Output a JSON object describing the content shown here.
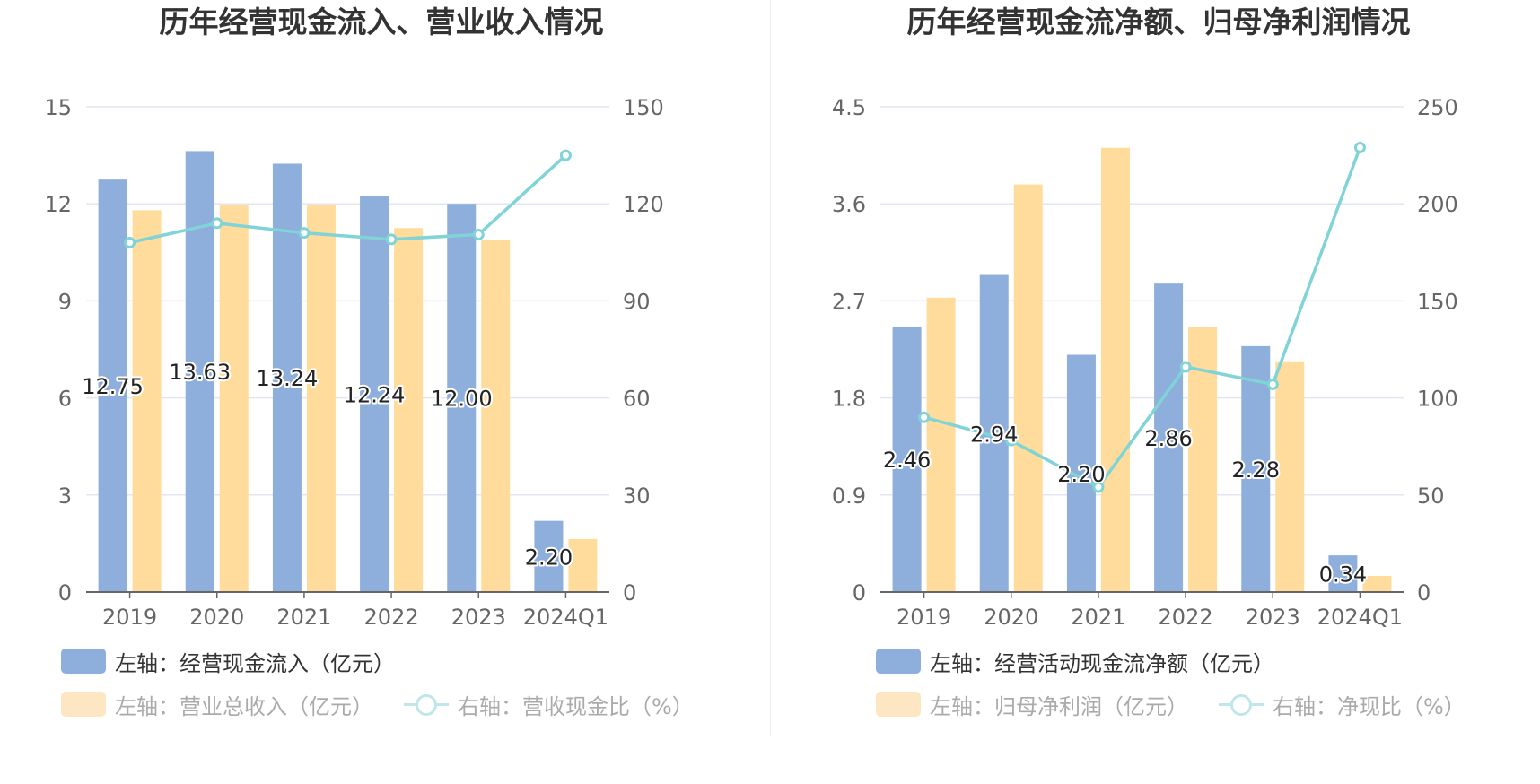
{
  "colors": {
    "bar1": "#8eaedb",
    "bar2": "#ffdb9c",
    "line": "#80d3d6",
    "legend_bar1": "#8eaedb",
    "legend_bar2": "#fde7c3",
    "axis": "#666666",
    "grid": "#e2e6f0"
  },
  "chart_data": [
    {
      "type": "bar",
      "title": "历年经营现金流入、营业收入情况",
      "categories": [
        "2019",
        "2020",
        "2021",
        "2022",
        "2023",
        "2024Q1"
      ],
      "left_axis": {
        "min": 0,
        "max": 15,
        "ticks": [
          "0",
          "3",
          "6",
          "9",
          "12",
          "15"
        ]
      },
      "right_axis": {
        "min": 0,
        "max": 150,
        "ticks": [
          "0",
          "30",
          "60",
          "90",
          "120",
          "150"
        ]
      },
      "grid": true,
      "legend_position": "bottom-left",
      "series": [
        {
          "name": "左轴：经营现金流入（亿元）",
          "kind": "bar",
          "axis": "left",
          "values": [
            12.75,
            13.63,
            13.24,
            12.24,
            12.0,
            2.2
          ],
          "labels": [
            "12.75",
            "13.63",
            "13.24",
            "12.24",
            "12.00",
            "2.20"
          ]
        },
        {
          "name": "左轴：营业总收入（亿元）",
          "kind": "bar",
          "axis": "left",
          "values": [
            11.8,
            11.95,
            11.95,
            11.25,
            10.88,
            1.64
          ]
        },
        {
          "name": "右轴：营收现金比（%）",
          "kind": "line",
          "axis": "right",
          "values": [
            108,
            114,
            111,
            109,
            110.5,
            135
          ]
        }
      ]
    },
    {
      "type": "bar",
      "title": "历年经营现金流净额、归母净利润情况",
      "categories": [
        "2019",
        "2020",
        "2021",
        "2022",
        "2023",
        "2024Q1"
      ],
      "left_axis": {
        "min": 0,
        "max": 4.5,
        "ticks": [
          "0",
          "0.9",
          "1.8",
          "2.7",
          "3.6",
          "4.5"
        ]
      },
      "right_axis": {
        "min": 0,
        "max": 250,
        "ticks": [
          "0",
          "50",
          "100",
          "150",
          "200",
          "250"
        ]
      },
      "grid": true,
      "legend_position": "bottom-left",
      "series": [
        {
          "name": "左轴：经营活动现金流净额（亿元）",
          "kind": "bar",
          "axis": "left",
          "values": [
            2.46,
            2.94,
            2.2,
            2.86,
            2.28,
            0.34
          ],
          "labels": [
            "2.46",
            "2.94",
            "2.20",
            "2.86",
            "2.28",
            "0.34"
          ]
        },
        {
          "name": "左轴：归母净利润（亿元）",
          "kind": "bar",
          "axis": "left",
          "values": [
            2.73,
            3.78,
            4.12,
            2.46,
            2.14,
            0.15
          ]
        },
        {
          "name": "右轴：净现比（%）",
          "kind": "line",
          "axis": "right",
          "values": [
            90,
            78,
            54,
            116,
            107,
            229
          ]
        }
      ]
    }
  ]
}
